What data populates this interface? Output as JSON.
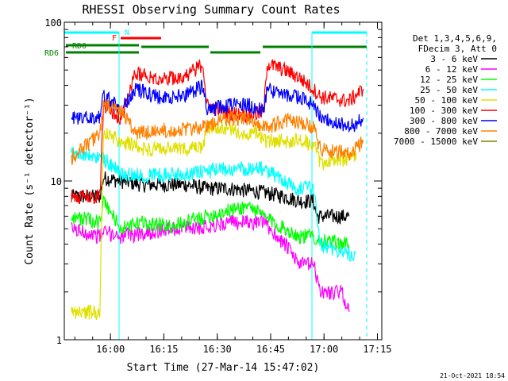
{
  "chart_data": {
    "type": "line",
    "title": "RHESSI Observing Summary Count Rates",
    "xlabel": "Start Time (27-Mar-14 15:47:02)",
    "ylabel": "Count Rate (s⁻¹ detector⁻¹)",
    "y_scale": "log",
    "ylim": [
      1,
      100
    ],
    "xlim_minutes": [
      0,
      84
    ],
    "x_ticks": [
      {
        "t": 12.97,
        "label": "16:00"
      },
      {
        "t": 27.97,
        "label": "16:15"
      },
      {
        "t": 42.97,
        "label": "16:30"
      },
      {
        "t": 57.97,
        "label": "16:45"
      },
      {
        "t": 72.97,
        "label": "17:00"
      },
      {
        "t": 87.97,
        "label": "17:15"
      }
    ],
    "y_ticks": [
      {
        "v": 1,
        "label": "1"
      },
      {
        "v": 10,
        "label": "10"
      },
      {
        "v": 100,
        "label": "100"
      }
    ],
    "legend_title": [
      "Det 1,3,4,5,6,9,",
      "FDecim 3, Att 0"
    ],
    "legend_position": "right",
    "series": [
      {
        "name": "3 - 6 keV",
        "color": "#000000",
        "points": [
          [
            2,
            8
          ],
          [
            10,
            8
          ],
          [
            11,
            10.5
          ],
          [
            16,
            10
          ],
          [
            22,
            9.5
          ],
          [
            28,
            9.5
          ],
          [
            34,
            9.5
          ],
          [
            40,
            9
          ],
          [
            46,
            9
          ],
          [
            52,
            8.7
          ],
          [
            56,
            8.5
          ],
          [
            62,
            8
          ],
          [
            66,
            7.5
          ],
          [
            70,
            7.5
          ],
          [
            71,
            6
          ],
          [
            80,
            6
          ]
        ]
      },
      {
        "name": "6 - 12 keV",
        "color": "#ff00ff",
        "points": [
          [
            2,
            5
          ],
          [
            10,
            4.5
          ],
          [
            11,
            4.8
          ],
          [
            16,
            4.5
          ],
          [
            22,
            4.7
          ],
          [
            30,
            5
          ],
          [
            40,
            5.2
          ],
          [
            46,
            5.5
          ],
          [
            52,
            5.5
          ],
          [
            56,
            5.5
          ],
          [
            62,
            4
          ],
          [
            66,
            3
          ],
          [
            70,
            3
          ],
          [
            72,
            2
          ],
          [
            78,
            2
          ],
          [
            80,
            1.5
          ]
        ]
      },
      {
        "name": "12 - 25 keV",
        "color": "#00ff00",
        "points": [
          [
            2,
            6
          ],
          [
            10,
            5.5
          ],
          [
            11,
            7.5
          ],
          [
            16,
            5
          ],
          [
            22,
            5.5
          ],
          [
            30,
            5.2
          ],
          [
            40,
            6
          ],
          [
            46,
            6.5
          ],
          [
            52,
            7
          ],
          [
            56,
            6
          ],
          [
            62,
            5
          ],
          [
            66,
            4.5
          ],
          [
            70,
            4.5
          ],
          [
            72,
            4.2
          ],
          [
            80,
            4
          ]
        ]
      },
      {
        "name": "25 - 50 keV",
        "color": "#00ffff",
        "points": [
          [
            2,
            15
          ],
          [
            10,
            14
          ],
          [
            11,
            14
          ],
          [
            16,
            11
          ],
          [
            22,
            11
          ],
          [
            30,
            11
          ],
          [
            40,
            11.5
          ],
          [
            46,
            12
          ],
          [
            52,
            12
          ],
          [
            56,
            12
          ],
          [
            62,
            10
          ],
          [
            66,
            9
          ],
          [
            70,
            9
          ],
          [
            72,
            4
          ],
          [
            80,
            3.5
          ],
          [
            82,
            3.5
          ]
        ]
      },
      {
        "name": "50 - 100 keV",
        "color": "#e0e000",
        "points": [
          [
            2,
            1.5
          ],
          [
            10,
            1.5
          ],
          [
            11,
            20
          ],
          [
            16,
            18
          ],
          [
            22,
            16
          ],
          [
            30,
            16
          ],
          [
            39,
            16
          ],
          [
            40,
            22
          ],
          [
            46,
            21
          ],
          [
            52,
            20
          ],
          [
            55,
            20
          ],
          [
            56,
            18
          ],
          [
            62,
            18
          ],
          [
            66,
            18
          ],
          [
            70,
            17
          ],
          [
            72,
            13
          ],
          [
            80,
            14
          ],
          [
            82,
            15
          ]
        ]
      },
      {
        "name": "100 - 300 keV",
        "color": "#ff0000",
        "points": [
          [
            2,
            8
          ],
          [
            10,
            8
          ],
          [
            11,
            30
          ],
          [
            16,
            25
          ],
          [
            20,
            48
          ],
          [
            28,
            44
          ],
          [
            34,
            46
          ],
          [
            39,
            55
          ],
          [
            40,
            30
          ],
          [
            46,
            27
          ],
          [
            52,
            26
          ],
          [
            56,
            27
          ],
          [
            57,
            55
          ],
          [
            62,
            50
          ],
          [
            66,
            45
          ],
          [
            70,
            38
          ],
          [
            72,
            34
          ],
          [
            80,
            32
          ],
          [
            82,
            35
          ],
          [
            84,
            38
          ]
        ]
      },
      {
        "name": "300 - 800 keV",
        "color": "#0000ff",
        "points": [
          [
            2,
            25
          ],
          [
            10,
            25
          ],
          [
            11,
            35
          ],
          [
            16,
            28
          ],
          [
            20,
            38
          ],
          [
            28,
            33
          ],
          [
            34,
            35
          ],
          [
            39,
            40
          ],
          [
            40,
            28
          ],
          [
            46,
            30
          ],
          [
            52,
            30
          ],
          [
            56,
            28
          ],
          [
            57,
            38
          ],
          [
            62,
            35
          ],
          [
            66,
            34
          ],
          [
            70,
            30
          ],
          [
            72,
            25
          ],
          [
            80,
            22
          ],
          [
            82,
            23
          ],
          [
            84,
            25
          ]
        ]
      },
      {
        "name": "800 - 7000 keV",
        "color": "#ff8000",
        "points": [
          [
            2,
            14
          ],
          [
            10,
            20
          ],
          [
            11,
            30
          ],
          [
            16,
            28
          ],
          [
            20,
            20
          ],
          [
            28,
            21
          ],
          [
            34,
            21
          ],
          [
            39,
            22
          ],
          [
            40,
            22
          ],
          [
            46,
            25
          ],
          [
            52,
            25
          ],
          [
            56,
            22
          ],
          [
            57,
            22
          ],
          [
            62,
            24
          ],
          [
            66,
            24
          ],
          [
            70,
            22
          ],
          [
            72,
            16
          ],
          [
            80,
            15
          ],
          [
            82,
            16
          ],
          [
            84,
            18
          ]
        ]
      },
      {
        "name": "7000 - 15000 keV",
        "color": "#808000",
        "points": []
      }
    ],
    "annotations": [
      {
        "label": "N",
        "color": "#00ffff"
      },
      {
        "label": "F",
        "color": "#ff0000"
      },
      {
        "label": "RD0",
        "color": "#008000"
      },
      {
        "label": "RD6",
        "color": "#008000"
      }
    ],
    "timestamp": "21-Oct-2021 18:54"
  }
}
